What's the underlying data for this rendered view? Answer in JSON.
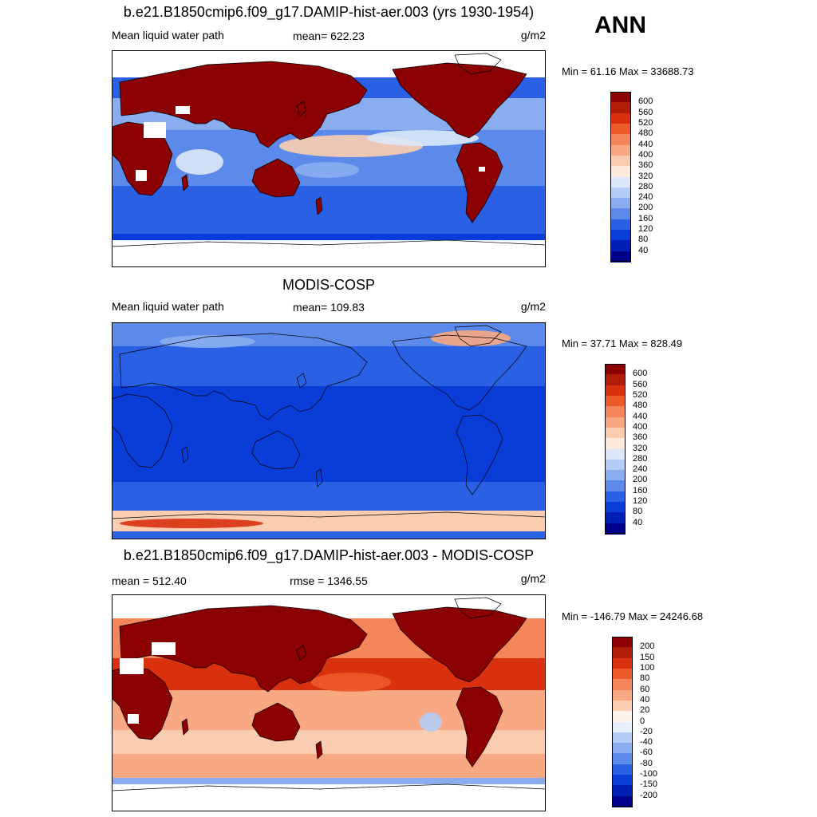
{
  "season": "ANN",
  "panels": [
    {
      "title": "b.e21.B1850cmip6.f09_g17.DAMIP-hist-aer.003 (yrs 1930-1954)",
      "left_label": "Mean liquid water path",
      "center_label": "mean= 622.23",
      "units": "g/m2",
      "minmax": "Min =  61.16 Max = 33688.73",
      "colorbar_levels": [
        "600",
        "560",
        "520",
        "480",
        "440",
        "400",
        "360",
        "320",
        "280",
        "240",
        "200",
        "160",
        "120",
        "80",
        "40"
      ],
      "colorbar_colors": [
        "#8b0000",
        "#b01c0a",
        "#d93010",
        "#ec5a2a",
        "#f5855a",
        "#f8a882",
        "#fbcdb0",
        "#fdeadc",
        "#dce8fa",
        "#b4cdf5",
        "#8aadef",
        "#5b8aea",
        "#2a61e4",
        "#0a3dd8",
        "#0020b5",
        "#00008b"
      ],
      "field": "model"
    },
    {
      "title": "MODIS-COSP",
      "left_label": "Mean liquid water path",
      "center_label": "mean= 109.83",
      "units": "g/m2",
      "minmax": "Min =  37.71 Max = 828.49",
      "colorbar_levels": [
        "600",
        "560",
        "520",
        "480",
        "440",
        "400",
        "360",
        "320",
        "280",
        "240",
        "200",
        "160",
        "120",
        "80",
        "40"
      ],
      "colorbar_colors": [
        "#8b0000",
        "#b01c0a",
        "#d93010",
        "#ec5a2a",
        "#f5855a",
        "#f8a882",
        "#fbcdb0",
        "#fdeadc",
        "#dce8fa",
        "#b4cdf5",
        "#8aadef",
        "#5b8aea",
        "#2a61e4",
        "#0a3dd8",
        "#0020b5",
        "#00008b"
      ],
      "field": "obs"
    },
    {
      "title": "b.e21.B1850cmip6.f09_g17.DAMIP-hist-aer.003 - MODIS-COSP",
      "left_label": "mean = 512.40",
      "center_label": "rmse = 1346.55",
      "units": "g/m2",
      "minmax": "Min = -146.79 Max = 24246.68",
      "colorbar_levels": [
        "200",
        "150",
        "100",
        "80",
        "60",
        "40",
        "20",
        "0",
        "-20",
        "-40",
        "-60",
        "-80",
        "-100",
        "-150",
        "-200"
      ],
      "colorbar_colors": [
        "#8b0000",
        "#b01c0a",
        "#d93010",
        "#ec5a2a",
        "#f5855a",
        "#f8a882",
        "#fbcdb0",
        "#fdf3ec",
        "#e8effc",
        "#b4cdf5",
        "#8aadef",
        "#5b8aea",
        "#2a61e4",
        "#0a3dd8",
        "#0020b5",
        "#00008b"
      ],
      "field": "diff"
    }
  ]
}
